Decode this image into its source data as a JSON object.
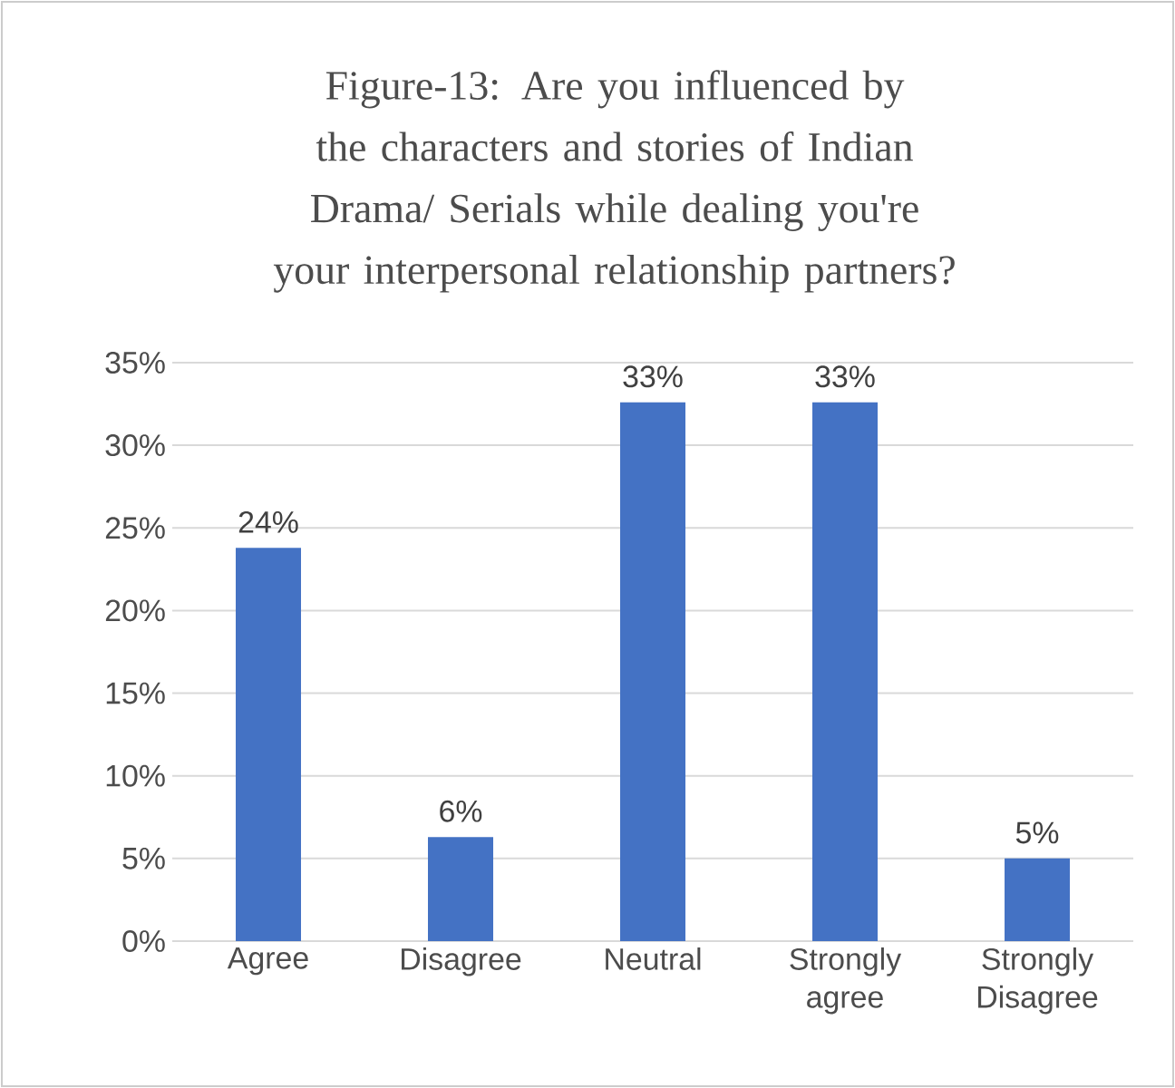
{
  "chart_data": {
    "type": "bar",
    "title": "Figure-13: Are you influenced by the characters and stories of Indian Drama/ Serials while dealing you're your interpersonal relationship partners?",
    "categories": [
      "Agree",
      "Disagree",
      "Neutral",
      "Strongly agree",
      "Strongly Disagree"
    ],
    "values": [
      23.8,
      6.3,
      32.6,
      32.6,
      5.0
    ],
    "value_labels": [
      "24%",
      "6%",
      "33%",
      "33%",
      "5%"
    ],
    "color": "#4472c4",
    "ylim": [
      0,
      35
    ],
    "yticks": [
      {
        "value": 0,
        "label": "0%"
      },
      {
        "value": 5,
        "label": "5%"
      },
      {
        "value": 10,
        "label": "10%"
      },
      {
        "value": 15,
        "label": "15%"
      },
      {
        "value": 20,
        "label": "20%"
      },
      {
        "value": 25,
        "label": "25%"
      },
      {
        "value": 30,
        "label": "30%"
      },
      {
        "value": 35,
        "label": "35%"
      }
    ],
    "grid": "y"
  }
}
